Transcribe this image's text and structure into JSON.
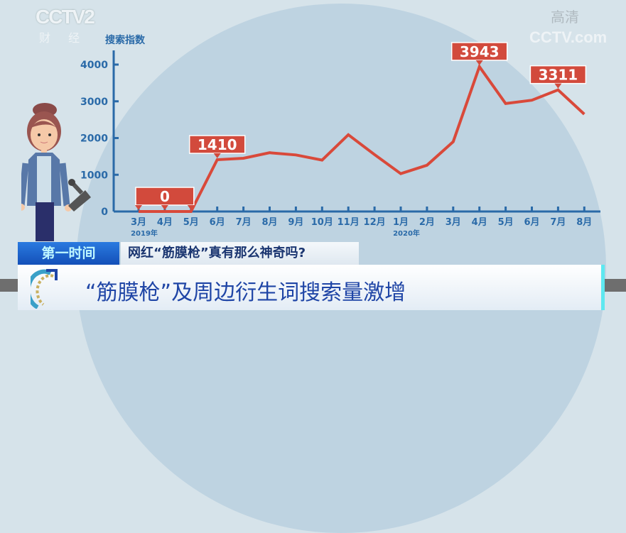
{
  "logos": {
    "channel": "CCTV",
    "channel_number": "2",
    "channel_name": "财 经",
    "watermark": "CCTV.com",
    "hd": "高清"
  },
  "banner": {
    "program": "第一时间",
    "topic": "网红“筋膜枪”真有那么神奇吗?",
    "headline": "“筋膜枪”及周边衍生词搜索量激增"
  },
  "colors": {
    "line": "#d9493a",
    "axis": "#2a6aa8",
    "label_box": "#d24a3c",
    "background": "#d6e3ea"
  },
  "chart_data": {
    "type": "line",
    "ylabel": "搜索指数",
    "ylim": [
      0,
      4000
    ],
    "yticks": [
      "0",
      "1000",
      "2000",
      "3000",
      "4000"
    ],
    "categories": [
      "3月",
      "4月",
      "5月",
      "6月",
      "7月",
      "8月",
      "9月",
      "10月",
      "11月",
      "12月",
      "1月",
      "2月",
      "3月",
      "4月",
      "5月",
      "6月",
      "7月",
      "8月"
    ],
    "year_labels": [
      {
        "at": 0,
        "text": "2019年"
      },
      {
        "at": 10,
        "text": "2020年"
      }
    ],
    "values": [
      0,
      0,
      0,
      1410,
      1450,
      1600,
      1540,
      1400,
      2090,
      1550,
      1030,
      1260,
      1900,
      3943,
      2940,
      3030,
      3311,
      2650
    ],
    "annotations": [
      {
        "text": "0",
        "points": [
          0,
          1,
          2
        ]
      },
      {
        "text": "1410",
        "points": [
          3
        ]
      },
      {
        "text": "3943",
        "points": [
          13
        ]
      },
      {
        "text": "3311",
        "points": [
          16
        ]
      }
    ],
    "grid": false
  }
}
